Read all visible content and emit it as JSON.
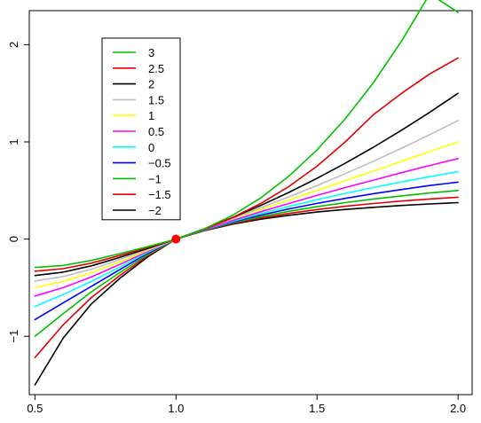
{
  "chart_data": {
    "type": "line",
    "title": "",
    "xlabel": "",
    "ylabel": "",
    "xlim": [
      0.48,
      2.05
    ],
    "ylim": [
      -1.6,
      2.35
    ],
    "x_ticks": [
      {
        "value": 0.5,
        "label": "0.5"
      },
      {
        "value": 1.0,
        "label": "1.0"
      },
      {
        "value": 1.5,
        "label": "1.5"
      },
      {
        "value": 2.0,
        "label": "2.0"
      }
    ],
    "y_ticks": [
      {
        "value": -1,
        "label": "−1"
      },
      {
        "value": 0,
        "label": "0"
      },
      {
        "value": 1,
        "label": "1"
      },
      {
        "value": 2,
        "label": "2"
      }
    ],
    "x": [
      0.5,
      0.6,
      0.7,
      0.8,
      0.9,
      1.0,
      1.1,
      1.2,
      1.3,
      1.4,
      1.5,
      1.6,
      1.7,
      1.8,
      1.9,
      2.0
    ],
    "series": [
      {
        "name": "3",
        "color": "#00c000",
        "values": [
          -0.292,
          -0.272,
          -0.22,
          -0.15,
          -0.078,
          0.0,
          0.104,
          0.243,
          0.422,
          0.646,
          0.917,
          1.237,
          1.609,
          2.037,
          2.522,
          2.333
        ]
      },
      {
        "name": "2.5",
        "color": "#e00000",
        "values": [
          -0.33,
          -0.305,
          -0.247,
          -0.17,
          -0.087,
          0.0,
          0.1,
          0.22,
          0.365,
          0.54,
          0.75,
          1.0,
          1.28,
          1.5,
          1.7,
          1.863
        ]
      },
      {
        "name": "2",
        "color": "#000000",
        "values": [
          -0.375,
          -0.34,
          -0.275,
          -0.19,
          -0.096,
          0.0,
          0.105,
          0.22,
          0.345,
          0.48,
          0.625,
          0.78,
          0.945,
          1.12,
          1.305,
          1.5
        ]
      },
      {
        "name": "1.5",
        "color": "#bebebe",
        "values": [
          -0.431,
          -0.385,
          -0.31,
          -0.212,
          -0.106,
          0.0,
          0.104,
          0.212,
          0.321,
          0.434,
          0.551,
          0.673,
          0.801,
          0.935,
          1.075,
          1.219
        ]
      },
      {
        "name": "1",
        "color": "#ffff00",
        "values": [
          -0.5,
          -0.436,
          -0.347,
          -0.236,
          -0.115,
          0.0,
          0.105,
          0.208,
          0.303,
          0.4,
          0.5,
          0.6,
          0.7,
          0.8,
          0.9,
          1.0
        ]
      },
      {
        "name": "0.5",
        "color": "#ff00ff",
        "values": [
          -0.586,
          -0.5,
          -0.39,
          -0.262,
          -0.126,
          0.0,
          0.098,
          0.191,
          0.281,
          0.366,
          0.449,
          0.53,
          0.607,
          0.683,
          0.757,
          0.828
        ]
      },
      {
        "name": "0",
        "color": "#00ffff",
        "values": [
          -0.693,
          -0.571,
          -0.436,
          -0.288,
          -0.136,
          0.0,
          0.095,
          0.182,
          0.262,
          0.336,
          0.405,
          0.47,
          0.531,
          0.588,
          0.642,
          0.693
        ]
      },
      {
        "name": "−0.5",
        "color": "#0000ff",
        "values": [
          -0.828,
          -0.657,
          -0.486,
          -0.316,
          -0.146,
          0.0,
          0.093,
          0.174,
          0.246,
          0.31,
          0.367,
          0.419,
          0.467,
          0.51,
          0.551,
          0.586
        ]
      },
      {
        "name": "−1",
        "color": "#00c000",
        "values": [
          -1.0,
          -0.767,
          -0.543,
          -0.346,
          -0.16,
          0.0,
          0.091,
          0.167,
          0.231,
          0.286,
          0.333,
          0.375,
          0.412,
          0.444,
          0.474,
          0.5
        ]
      },
      {
        "name": "−1.5",
        "color": "#e00000",
        "values": [
          -1.219,
          -0.883,
          -0.601,
          -0.377,
          -0.171,
          0.0,
          0.088,
          0.16,
          0.217,
          0.264,
          0.304,
          0.338,
          0.366,
          0.391,
          0.412,
          0.431
        ]
      },
      {
        "name": "−2",
        "color": "#000000",
        "values": [
          -1.5,
          -1.02,
          -0.668,
          -0.406,
          -0.182,
          0.0,
          0.086,
          0.153,
          0.204,
          0.245,
          0.278,
          0.305,
          0.327,
          0.346,
          0.361,
          0.375
        ]
      }
    ],
    "points": [
      {
        "x": 1.0,
        "y": 0.0,
        "color": "#ff0000"
      }
    ],
    "grid": false,
    "legend": {
      "position": "top-left",
      "box": true
    }
  }
}
